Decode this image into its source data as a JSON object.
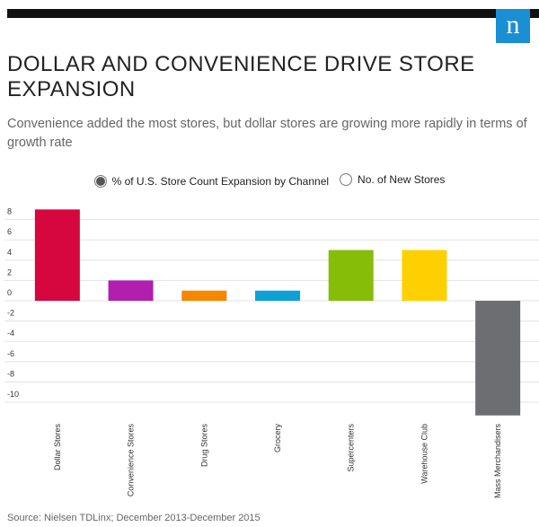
{
  "logo": "n",
  "chart_data": {
    "type": "bar",
    "title": "DOLLAR AND CONVENIENCE DRIVE STORE EXPANSION",
    "subtitle": "Convenience added the most stores, but dollar stores are growing more rapidly in terms of growth rate",
    "toggles": [
      {
        "label": "% of U.S. Store Count Expansion by Channel",
        "selected": true
      },
      {
        "label": "No. of New Stores",
        "selected": false
      }
    ],
    "categories": [
      "Dollar Stores",
      "Convenience Stores",
      "Drug Stores",
      "Grocery",
      "Supercenters",
      "Warehouse Club",
      "Mass Merchandisers"
    ],
    "values": [
      9,
      2,
      1,
      1,
      5,
      5,
      -11.3
    ],
    "colors": [
      "#d6063f",
      "#b01fae",
      "#f78600",
      "#0ea0d8",
      "#86bd08",
      "#ffd000",
      "#6d6e71"
    ],
    "ylim": [
      -11.5,
      10
    ],
    "yticks": [
      -10,
      -8,
      -6,
      -4,
      -2,
      0,
      2,
      4,
      6,
      8
    ],
    "grid": true,
    "source": "Source: Nielsen TDLinx; December 2013-December 2015"
  }
}
